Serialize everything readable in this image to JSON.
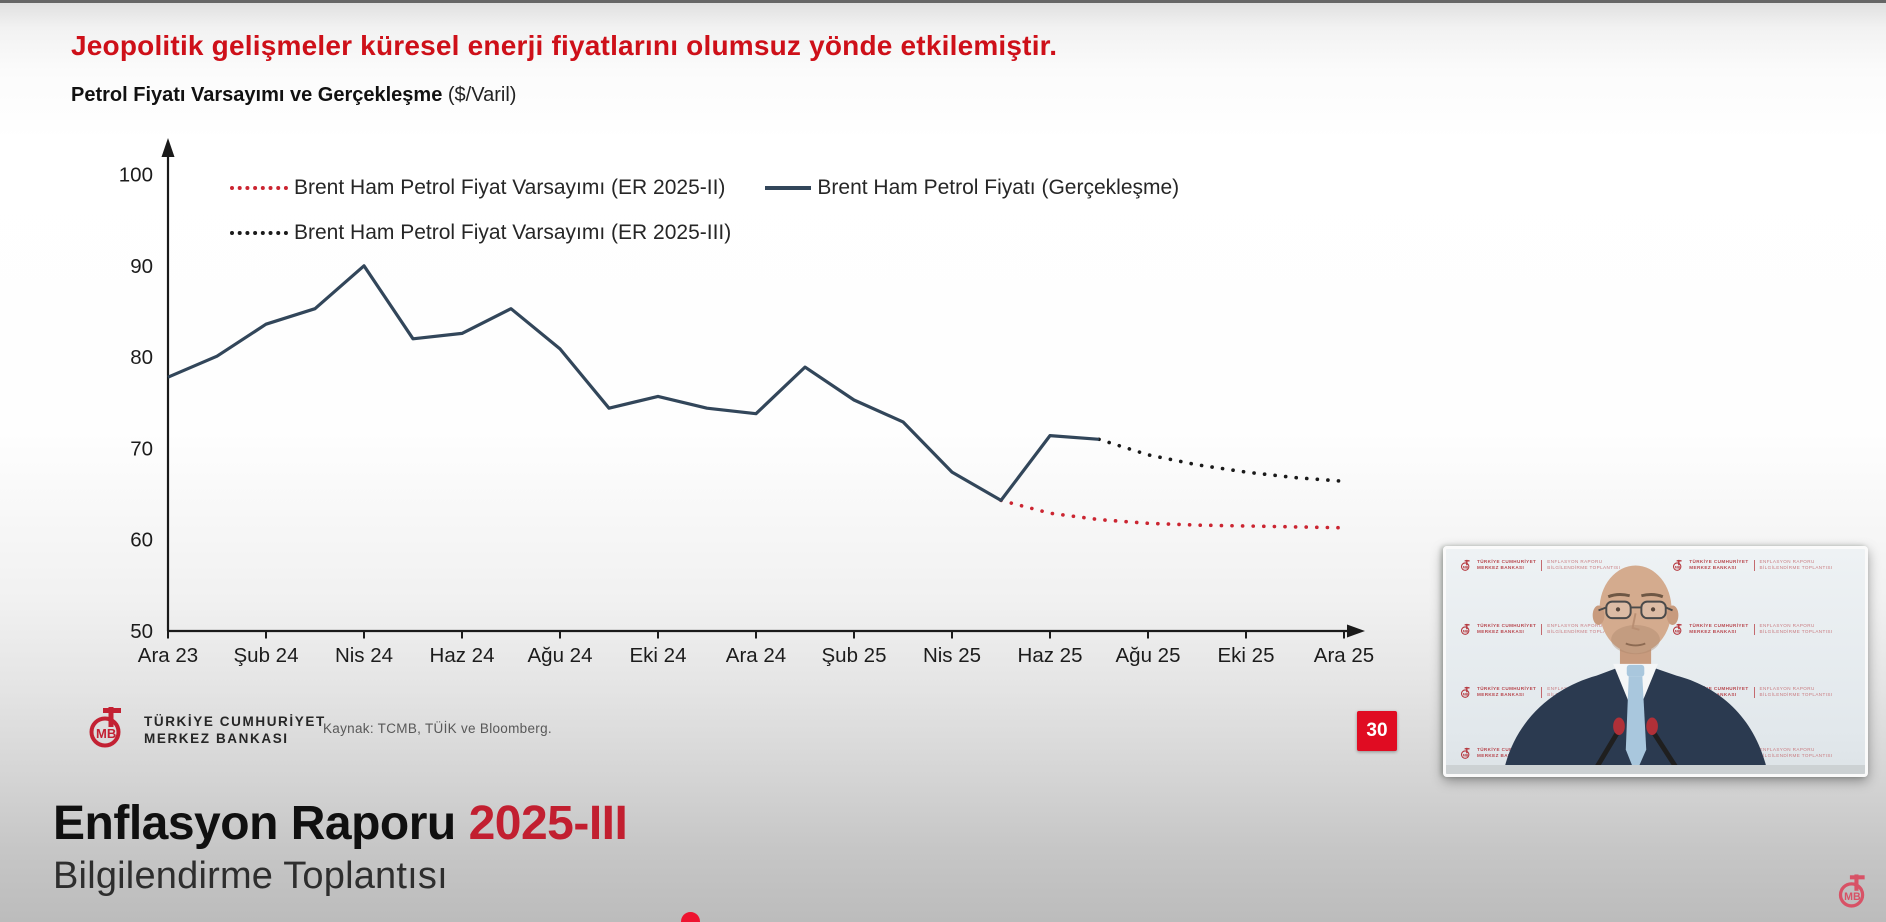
{
  "header": {
    "title": "Jeopolitik gelişmeler küresel enerji fiyatlarını olumsuz yönde etkilemiştir.",
    "chart_title": "Petrol Fiyatı Varsayımı ve Gerçekleşme",
    "chart_unit": " ($/Varil)"
  },
  "chart_data": {
    "type": "line",
    "title": "Petrol Fiyatı Varsayımı ve Gerçekleşme ($/Varil)",
    "ylabel": "$/Varil",
    "ylim": [
      50,
      100
    ],
    "y_ticks": [
      50,
      60,
      70,
      80,
      90,
      100
    ],
    "x_tick_labels": [
      "Ara 23",
      "Şub 24",
      "Nis 24",
      "Haz 24",
      "Ağu 24",
      "Eki 24",
      "Ara 24",
      "Şub 25",
      "Nis 25",
      "Haz 25",
      "Ağu 25",
      "Eki 25",
      "Ara 25"
    ],
    "months_per_tick": 2,
    "grid": false,
    "legend_position": "top-left-inside",
    "series": [
      {
        "name": "Brent Ham Petrol Fiyatı (Gerçekleşme)",
        "style": "solid",
        "color": "#32465a",
        "start_month_index": 0,
        "values": [
          77.8,
          80.1,
          83.6,
          85.3,
          90.0,
          82.0,
          82.6,
          85.3,
          80.9,
          74.4,
          75.7,
          74.4,
          73.8,
          78.9,
          75.3,
          72.9,
          67.4,
          64.3,
          71.4,
          71.0
        ]
      },
      {
        "name": "Brent Ham Petrol Fiyat Varsayımı (ER 2025-II)",
        "style": "dotted",
        "color": "#cb2531",
        "start_month_index": 17,
        "values": [
          64.3,
          62.9,
          62.2,
          61.8,
          61.6,
          61.5,
          61.4,
          61.3
        ]
      },
      {
        "name": "Brent Ham Petrol Fiyat Varsayımı (ER 2025-III)",
        "style": "dotted",
        "color": "#1a1a1a",
        "start_month_index": 19,
        "values": [
          71.0,
          69.3,
          68.2,
          67.4,
          66.8,
          66.4
        ]
      }
    ]
  },
  "footer": {
    "bank_line1": "TÜRKİYE CUMHURİYET",
    "bank_line2": "MERKEZ BANKASI",
    "source": "Kaynak: TCMB, TÜİK ve Bloomberg.",
    "page_number": "30",
    "report_title": "Enflasyon Raporu ",
    "report_edition": "2025-III",
    "report_subtitle": "Bilgilendirme Toplantısı"
  },
  "video": {
    "backdrop_bank_line1": "TÜRKİYE CUMHURİYET",
    "backdrop_bank_line2": "MERKEZ BANKASI",
    "backdrop_event_line1": "ENFLASYON RAPORU",
    "backdrop_event_line2": "BİLGİLENDİRME TOPLANTISI"
  },
  "colors": {
    "accent_red": "#ce1019",
    "badge_red": "#e00c22",
    "report_edition_red": "#c21f30",
    "series_realized": "#32465a",
    "series_er2025_ii": "#cb2531",
    "series_er2025_iii": "#1a1a1a",
    "logo_red": "#c32133",
    "corner_logo_pink": "#d85266"
  }
}
